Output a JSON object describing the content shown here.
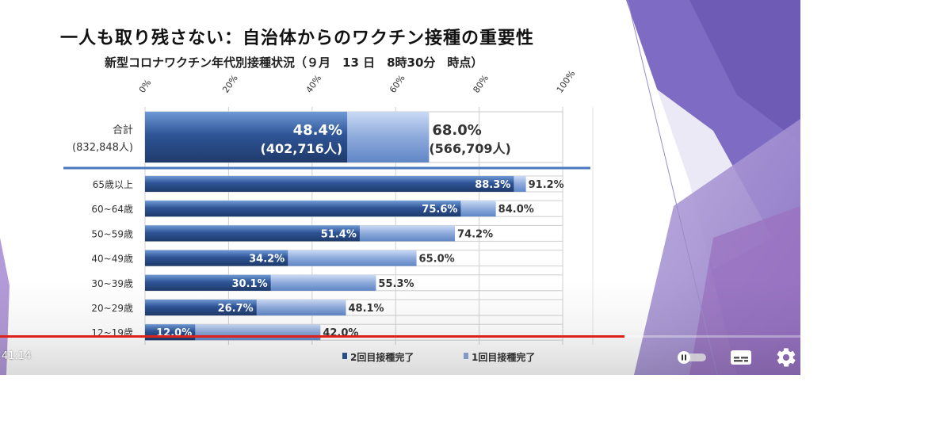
{
  "slide": {
    "title": "一人も取り残さない：自治体からのワクチン接種の重要性"
  },
  "chart_data": {
    "type": "bar",
    "orientation": "horizontal",
    "layout": "overlapping",
    "title": "新型コロナワクチン年代別接種状況（９月　13 日　8時30分　時点）",
    "xlim": [
      0,
      100
    ],
    "x_ticks": [
      "0%",
      "20%",
      "40%",
      "60%",
      "80%",
      "100%"
    ],
    "total": {
      "label": "合計",
      "sublabel": "(832,848人)",
      "second_dose_pct": 48.4,
      "second_dose_label": "48.4%",
      "second_dose_count": "(402,716人)",
      "first_dose_pct": 68.0,
      "first_dose_label": "68.0%",
      "first_dose_count": "(566,709人)"
    },
    "categories": [
      "65歳以上",
      "60~64歳",
      "50~59歳",
      "40~49歳",
      "30~39歳",
      "20~29歳",
      "12~19歳"
    ],
    "series": [
      {
        "name": "2回目接種完了",
        "values": [
          88.3,
          75.6,
          51.4,
          34.2,
          30.1,
          26.7,
          12.0
        ],
        "labels": [
          "88.3%",
          "75.6%",
          "51.4%",
          "34.2%",
          "30.1%",
          "26.7%",
          "12.0%"
        ]
      },
      {
        "name": "1回目接種完了",
        "values": [
          91.2,
          84.0,
          74.2,
          65.0,
          55.3,
          48.1,
          42.0
        ],
        "labels": [
          "91.2%",
          "84.0%",
          "74.2%",
          "65.0%",
          "55.3%",
          "48.1%",
          "42.0%"
        ]
      }
    ],
    "legend": {
      "position": "bottom-right"
    },
    "grid": true,
    "colors": {
      "second_dose": "#2f5597",
      "first_dose": "#8eaadb",
      "divider": "#4a78c0"
    }
  },
  "player": {
    "current_time": "41:14",
    "progress_fraction": 0.78,
    "icons": {
      "autoplay": "autoplay-toggle-icon",
      "subtitles": "subtitles-icon",
      "settings": "gear-icon"
    },
    "colors": {
      "progress": "#e0201a"
    }
  }
}
